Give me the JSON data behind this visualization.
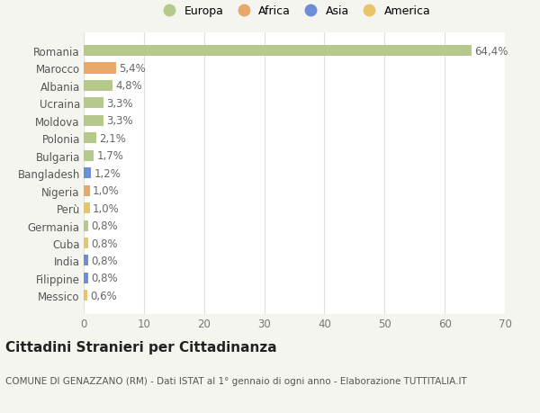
{
  "categories": [
    "Messico",
    "Filippine",
    "India",
    "Cuba",
    "Germania",
    "Perù",
    "Nigeria",
    "Bangladesh",
    "Bulgaria",
    "Polonia",
    "Moldova",
    "Ucraina",
    "Albania",
    "Marocco",
    "Romania"
  ],
  "values": [
    0.6,
    0.8,
    0.8,
    0.8,
    0.8,
    1.0,
    1.0,
    1.2,
    1.7,
    2.1,
    3.3,
    3.3,
    4.8,
    5.4,
    64.4
  ],
  "labels": [
    "0,6%",
    "0,8%",
    "0,8%",
    "0,8%",
    "0,8%",
    "1,0%",
    "1,0%",
    "1,2%",
    "1,7%",
    "2,1%",
    "3,3%",
    "3,3%",
    "4,8%",
    "5,4%",
    "64,4%"
  ],
  "colors": [
    "#e8c46a",
    "#6a8fd8",
    "#6a8fd8",
    "#e8c46a",
    "#b5c98a",
    "#e8c46a",
    "#e8a86a",
    "#6a8fd8",
    "#b5c98a",
    "#b5c98a",
    "#b5c98a",
    "#b5c98a",
    "#b5c98a",
    "#e8a86a",
    "#b5c98a"
  ],
  "continents": [
    "America",
    "Asia",
    "Asia",
    "America",
    "Europa",
    "America",
    "Africa",
    "Asia",
    "Europa",
    "Europa",
    "Europa",
    "Europa",
    "Europa",
    "Africa",
    "Europa"
  ],
  "legend_labels": [
    "Europa",
    "Africa",
    "Asia",
    "America"
  ],
  "legend_colors": [
    "#b5c98a",
    "#e8a86a",
    "#6a8fd8",
    "#e8c46a"
  ],
  "title": "Cittadini Stranieri per Cittadinanza",
  "subtitle": "COMUNE DI GENAZZANO (RM) - Dati ISTAT al 1° gennaio di ogni anno - Elaborazione TUTTITALIA.IT",
  "xlim": [
    0,
    70
  ],
  "xticks": [
    0,
    10,
    20,
    30,
    40,
    50,
    60,
    70
  ],
  "background_color": "#f5f5f0",
  "bar_background": "#ffffff",
  "grid_color": "#e0e0e0",
  "label_fontsize": 8.5,
  "tick_fontsize": 8.5,
  "title_fontsize": 11,
  "subtitle_fontsize": 7.5
}
